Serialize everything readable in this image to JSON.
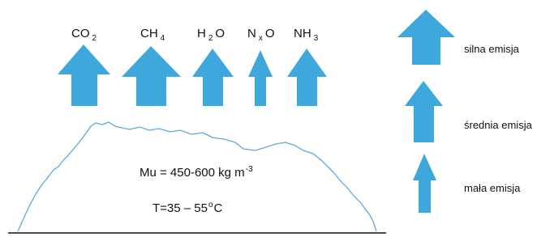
{
  "gases": [
    {
      "text": "CO",
      "sub": "2"
    },
    {
      "text": "CH",
      "sub": "4"
    },
    {
      "text": "H",
      "sub": "2",
      "after": "O"
    },
    {
      "text": "N",
      "sub": "x",
      "after": "O"
    },
    {
      "text": "NH",
      "sub": "3"
    }
  ],
  "legend": [
    "silna emisja",
    "średnia emisja",
    "mała emisja"
  ],
  "pile": {
    "density": {
      "text": "Mu = 450-600 kg m",
      "sup": "-3"
    },
    "temperature": {
      "text": "T=35 – 55",
      "sup": "o",
      "after": "C"
    }
  }
}
